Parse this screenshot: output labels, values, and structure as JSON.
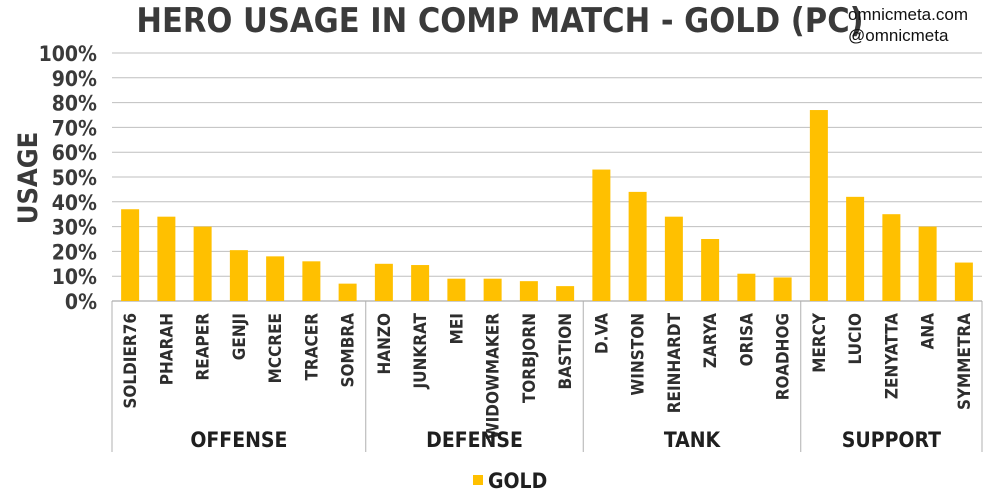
{
  "watermark": {
    "site": "omnicmeta.com",
    "handle": "@omnicmeta"
  },
  "chart_data": {
    "type": "bar",
    "title": "HERO USAGE IN COMP MATCH - GOLD (PC)",
    "ylabel": "USAGE",
    "ylim": [
      0,
      100
    ],
    "yticks": [
      "0%",
      "10%",
      "20%",
      "30%",
      "40%",
      "50%",
      "60%",
      "70%",
      "80%",
      "90%",
      "100%"
    ],
    "grid": true,
    "legend_position": "bottom-center",
    "colors": {
      "bar": "#FFC000",
      "grid": "#BFBFBF",
      "text": "#3A3A3A"
    },
    "groups": [
      {
        "name": "OFFENSE",
        "count": 7
      },
      {
        "name": "DEFENSE",
        "count": 6
      },
      {
        "name": "TANK",
        "count": 6
      },
      {
        "name": "SUPPORT",
        "count": 5
      }
    ],
    "categories": [
      "SOLDIER76",
      "PHARAH",
      "REAPER",
      "GENJI",
      "MCCREE",
      "TRACER",
      "SOMBRA",
      "HANZO",
      "JUNKRAT",
      "MEI",
      "WIDOWMAKER",
      "TORBJORN",
      "BASTION",
      "D.VA",
      "WINSTON",
      "REINHARDT",
      "ZARYA",
      "ORISA",
      "ROADHOG",
      "MERCY",
      "LUCIO",
      "ZENYATTA",
      "ANA",
      "SYMMETRA"
    ],
    "series": [
      {
        "name": "GOLD",
        "values": [
          37,
          34,
          30,
          20.5,
          18,
          16,
          7,
          15,
          14.5,
          9,
          9,
          8,
          6,
          53,
          44,
          34,
          25,
          11,
          9.5,
          77,
          42,
          35,
          30,
          15.5
        ]
      }
    ]
  }
}
